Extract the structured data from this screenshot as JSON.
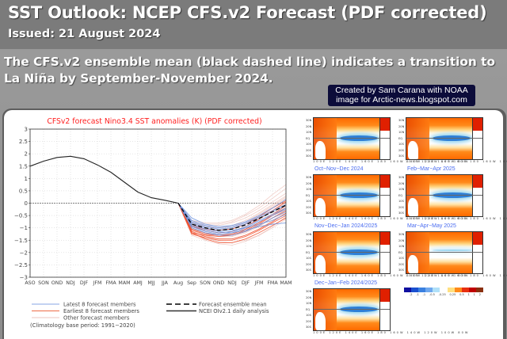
{
  "header": {
    "title": "SST Outlook: NCEP CFS.v2 Forecast (PDF corrected)",
    "issued": "Issued: 21 August 2024"
  },
  "description": "The CFS.v2 ensemble mean (black dashed line) indicates a transition to La Niña by September-November 2024.",
  "credit": {
    "line1": "Created by Sam Carana with NOAA",
    "line2": "image for Arctic-news.blogspot.com"
  },
  "colors": {
    "header_bg": "#7b7b7b",
    "chart_title": "#ff2020",
    "latest_members": "#6f95e0",
    "earliest_members": "#f04a2a",
    "other_members": "#e8b8b0",
    "observed": "#000000",
    "map_title": "#4a6cf0"
  },
  "chart_data": {
    "type": "line",
    "title": "CFSv2 forecast Nino3.4 SST anomalies (K) (PDF corrected)",
    "xlabel": "",
    "ylabel": "",
    "categories": [
      "ASO",
      "SON",
      "OND",
      "NDJ",
      "DJF",
      "JFM",
      "FMA",
      "MAM",
      "AMJ",
      "MJJ",
      "JJA",
      "Aug",
      "Sep",
      "SON",
      "OND",
      "NDJ",
      "DJF",
      "JFM",
      "FMA",
      "MAM"
    ],
    "ylim": [
      -3,
      3
    ],
    "yticks": [
      3,
      2.5,
      2,
      1.5,
      1,
      0.5,
      0,
      -0.5,
      -1,
      -1.5,
      -2,
      -2.5,
      -3
    ],
    "ytick_labels": [
      "3",
      "2.5",
      "2",
      "1.5",
      "1",
      "0.5",
      "0",
      "−0.5",
      "−1",
      "−1.5",
      "−2",
      "−2.5",
      "−3"
    ],
    "grid": true,
    "zero_line": true,
    "series": [
      {
        "name": "NCEI OIv2.1 daily analysis",
        "style": "solid-black",
        "start_index": 0,
        "values": [
          1.5,
          1.7,
          1.85,
          1.9,
          1.8,
          1.55,
          1.25,
          0.85,
          0.45,
          0.22,
          0.12,
          0.0
        ]
      },
      {
        "name": "Forecast ensemble mean",
        "style": "dashed-black",
        "start_index": 11,
        "values": [
          0.0,
          -0.85,
          -1.0,
          -1.1,
          -1.05,
          -0.88,
          -0.62,
          -0.35,
          -0.08
        ]
      },
      {
        "name": "Latest 8 forecast members",
        "style": "blue",
        "start_index": 11,
        "members": [
          [
            0.0,
            -0.6,
            -0.85,
            -0.95,
            -0.9,
            -0.75,
            -0.5,
            -0.2,
            0.15
          ],
          [
            0.0,
            -0.7,
            -0.9,
            -1.0,
            -0.95,
            -0.8,
            -0.55,
            -0.3,
            -0.05
          ],
          [
            0.0,
            -0.75,
            -0.95,
            -1.05,
            -1.0,
            -0.85,
            -0.6,
            -0.35,
            -0.1
          ],
          [
            0.0,
            -0.8,
            -1.0,
            -1.1,
            -1.1,
            -1.0,
            -0.85,
            -0.7,
            -0.45
          ],
          [
            0.0,
            -0.85,
            -1.05,
            -1.15,
            -1.2,
            -1.1,
            -0.95,
            -0.85,
            -0.8
          ],
          [
            0.0,
            -0.9,
            -1.1,
            -1.2,
            -1.15,
            -0.95,
            -0.7,
            -0.45,
            -0.2
          ],
          [
            0.0,
            -0.95,
            -1.15,
            -1.25,
            -1.2,
            -1.0,
            -0.75,
            -0.5,
            -0.25
          ],
          [
            0.0,
            -1.0,
            -1.2,
            -1.3,
            -1.3,
            -1.15,
            -0.9,
            -0.6,
            -0.35
          ]
        ]
      },
      {
        "name": "Earliest 8 forecast members",
        "style": "red",
        "start_index": 11,
        "members": [
          [
            0.0,
            -1.2,
            -1.3,
            -1.35,
            -1.3,
            -1.1,
            -0.85,
            -0.5,
            -0.2
          ],
          [
            0.0,
            -1.15,
            -1.35,
            -1.45,
            -1.45,
            -1.3,
            -1.05,
            -0.75,
            -0.4
          ],
          [
            0.0,
            -1.1,
            -1.25,
            -1.3,
            -1.25,
            -1.05,
            -0.8,
            -0.45,
            -0.1
          ],
          [
            0.0,
            -1.25,
            -1.4,
            -1.5,
            -1.5,
            -1.35,
            -1.1,
            -0.8,
            -0.5
          ],
          [
            0.0,
            -0.95,
            -1.1,
            -1.2,
            -1.15,
            -0.95,
            -0.65,
            -0.3,
            0.05
          ],
          [
            0.0,
            -1.05,
            -1.2,
            -1.3,
            -1.3,
            -1.15,
            -0.9,
            -0.6,
            -0.3
          ],
          [
            0.0,
            -0.9,
            -1.05,
            -1.1,
            -1.05,
            -0.85,
            -0.55,
            -0.2,
            0.1
          ],
          [
            0.0,
            -1.2,
            -1.45,
            -1.6,
            -1.6,
            -1.45,
            -1.2,
            -0.9,
            -0.6
          ]
        ]
      },
      {
        "name": "Other forecast members",
        "style": "light-red",
        "start_index": 11,
        "members": [
          [
            0.0,
            -0.7,
            -0.8,
            -0.8,
            -0.7,
            -0.45,
            -0.1,
            0.35,
            0.75
          ],
          [
            0.0,
            -0.75,
            -0.85,
            -0.85,
            -0.75,
            -0.5,
            -0.2,
            0.2,
            0.6
          ],
          [
            0.0,
            -0.8,
            -0.9,
            -0.9,
            -0.8,
            -0.6,
            -0.3,
            0.05,
            0.4
          ],
          [
            0.0,
            -0.85,
            -0.95,
            -1.0,
            -0.9,
            -0.7,
            -0.4,
            -0.05,
            0.3
          ],
          [
            0.0,
            -0.9,
            -1.05,
            -1.1,
            -1.0,
            -0.8,
            -0.5,
            -0.15,
            0.2
          ],
          [
            0.0,
            -1.0,
            -1.2,
            -1.3,
            -1.25,
            -1.05,
            -0.8,
            -0.5,
            -0.15
          ],
          [
            0.0,
            -1.1,
            -1.3,
            -1.45,
            -1.45,
            -1.3,
            -1.05,
            -0.7,
            -0.35
          ],
          [
            0.0,
            -1.2,
            -1.4,
            -1.55,
            -1.6,
            -1.5,
            -1.3,
            -1.0,
            -0.65
          ],
          [
            0.0,
            -1.3,
            -1.5,
            -1.65,
            -1.7,
            -1.55,
            -1.3,
            -0.95,
            -0.55
          ],
          [
            0.0,
            -0.95,
            -1.1,
            -1.2,
            -1.15,
            -0.95,
            -0.65,
            -0.3,
            0.0
          ],
          [
            0.0,
            -1.05,
            -1.25,
            -1.35,
            -1.35,
            -1.2,
            -0.95,
            -0.6,
            -0.25
          ],
          [
            0.0,
            -0.8,
            -0.95,
            -1.0,
            -0.95,
            -0.75,
            -0.45,
            -0.1,
            0.25
          ]
        ]
      }
    ],
    "legend": {
      "placement": "bottom",
      "entries": [
        "Latest 8 forecast members",
        "Earliest 8 forecast members",
        "Other forecast members",
        "Forecast ensemble mean",
        "NCEI OIv2.1 daily analysis"
      ],
      "note": "(Climatology base period: 1991−2020)"
    }
  },
  "maps": {
    "items": [
      {
        "title": "",
        "position": "top-left"
      },
      {
        "title": "",
        "position": "top-right"
      },
      {
        "title": "Oct−Nov−Dec 2024",
        "position": "row2-left"
      },
      {
        "title": "Feb−Mar−Apr 2025",
        "position": "row2-right"
      },
      {
        "title": "Nov−Dec−Jan 2024/2025",
        "position": "row3-left"
      },
      {
        "title": "Mar−Apr−May 2025",
        "position": "row3-right"
      },
      {
        "title": "Dec−Jan−Feb 2024/2025",
        "position": "row4-left"
      }
    ],
    "lon_ticks": "100E 120E 140E 160E 180 160W 140W 120W 100W 80W",
    "lat_ticks": [
      "30N",
      "20N",
      "10N",
      "EQ",
      "10S",
      "20S",
      "30S"
    ],
    "colorbar_labels": [
      "-2",
      "-1",
      "-1",
      "-0.5",
      "-0.25",
      "0.25",
      "0.5",
      "1",
      "1",
      "2"
    ]
  }
}
